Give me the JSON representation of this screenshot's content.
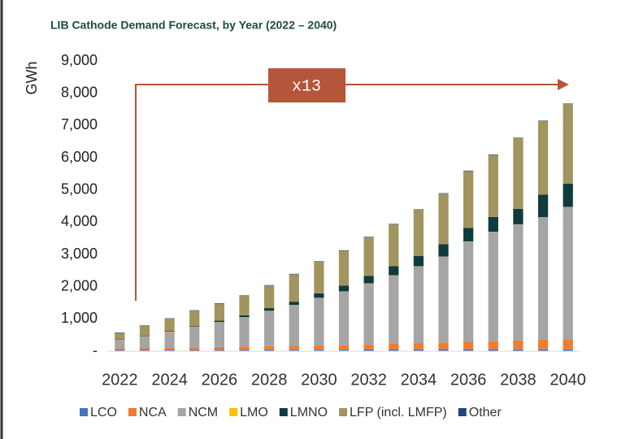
{
  "chart_data": {
    "type": "stacked-bar",
    "title": "LIB Cathode Demand Forecast, by Year (2022 – 2040)",
    "y_label": "GWh",
    "annotation": "x13",
    "categories": [
      "2022",
      null,
      "2024",
      null,
      "2026",
      null,
      "2028",
      null,
      "2030",
      null,
      "2032",
      null,
      "2034",
      null,
      "2036",
      null,
      "2038",
      null,
      "2040"
    ],
    "series": [
      {
        "name": "LCO",
        "color": "#4472c4",
        "values": [
          40,
          40,
          40,
          40,
          40,
          40,
          45,
          45,
          45,
          45,
          50,
          50,
          50,
          50,
          50,
          50,
          55,
          55,
          55
        ]
      },
      {
        "name": "NCA",
        "color": "#ed7d31",
        "values": [
          50,
          60,
          70,
          80,
          90,
          100,
          110,
          120,
          130,
          140,
          160,
          180,
          200,
          220,
          240,
          260,
          280,
          300,
          320
        ]
      },
      {
        "name": "NCM",
        "color": "#a5a5a5",
        "values": [
          260,
          350,
          490,
          640,
          770,
          910,
          1095,
          1265,
          1475,
          1665,
          1890,
          2120,
          2380,
          2660,
          3110,
          3390,
          3595,
          3795,
          4095
        ]
      },
      {
        "name": "LMO",
        "color": "#ffc000",
        "values": [
          5,
          5,
          5,
          5,
          5,
          5,
          5,
          5,
          5,
          5,
          5,
          5,
          5,
          5,
          5,
          5,
          5,
          5,
          5
        ]
      },
      {
        "name": "LMNO",
        "color": "#0f3b3d",
        "values": [
          10,
          15,
          20,
          25,
          40,
          60,
          80,
          100,
          140,
          180,
          230,
          280,
          320,
          380,
          420,
          460,
          480,
          700,
          720
        ]
      },
      {
        "name": "LFP (incl. LMFP)",
        "color": "#a0955f",
        "values": [
          200,
          315,
          380,
          465,
          530,
          600,
          700,
          850,
          980,
          1080,
          1200,
          1300,
          1430,
          1570,
          1760,
          1920,
          2190,
          2280,
          2470
        ]
      },
      {
        "name": "Other",
        "color": "#264478",
        "values": [
          15,
          15,
          15,
          15,
          15,
          15,
          15,
          15,
          15,
          15,
          15,
          15,
          15,
          15,
          15,
          15,
          15,
          15,
          15
        ]
      }
    ],
    "ylim": [
      0,
      9000
    ],
    "yticks": [
      {
        "value": 0,
        "label": "-"
      },
      {
        "value": 1000,
        "label": "1,000"
      },
      {
        "value": 2000,
        "label": "2,000"
      },
      {
        "value": 3000,
        "label": "3,000"
      },
      {
        "value": 4000,
        "label": "4,000"
      },
      {
        "value": 5000,
        "label": "5,000"
      },
      {
        "value": 6000,
        "label": "6,000"
      },
      {
        "value": 7000,
        "label": "7,000"
      },
      {
        "value": 8000,
        "label": "8,000"
      },
      {
        "value": 9000,
        "label": "9,000"
      }
    ],
    "grid": false,
    "legend": "bottom"
  }
}
